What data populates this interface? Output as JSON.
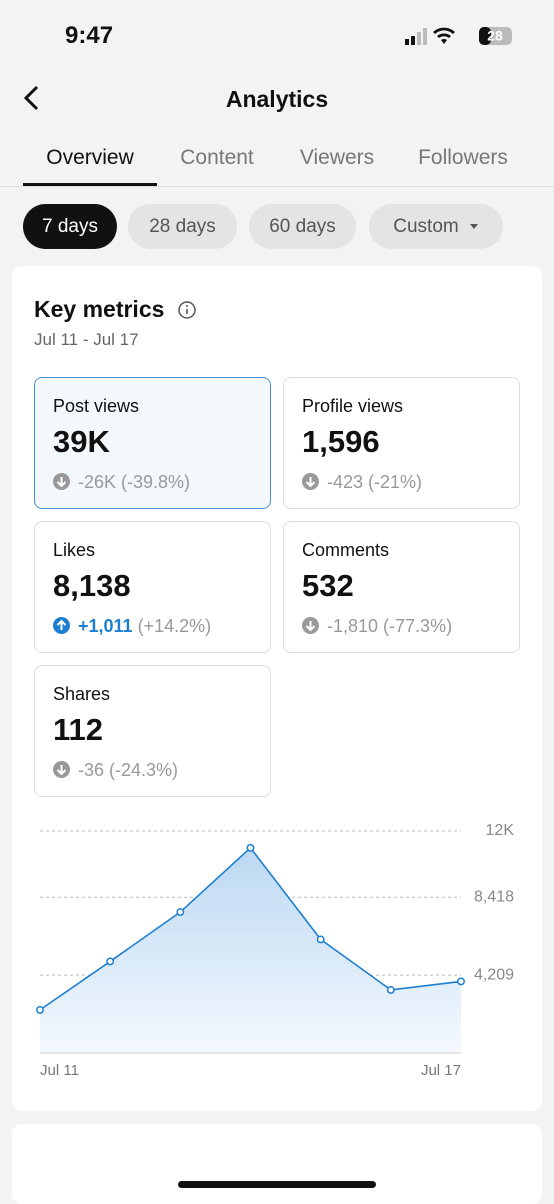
{
  "status_bar": {
    "time": "9:47",
    "battery": "28"
  },
  "header": {
    "title": "Analytics"
  },
  "tabs": {
    "items": [
      "Overview",
      "Content",
      "Viewers",
      "Followers"
    ],
    "active": 0
  },
  "ranges": {
    "items": [
      "7 days",
      "28 days",
      "60 days",
      "Custom"
    ],
    "active": 0
  },
  "key_metrics": {
    "title": "Key metrics",
    "date_range": "Jul 11 - Jul 17",
    "cards": [
      {
        "label": "Post views",
        "value": "39K",
        "change": "-26K",
        "change_pct": "(-39.8%)",
        "trend": "down",
        "selected": true
      },
      {
        "label": "Profile views",
        "value": "1,596",
        "change": "-423",
        "change_pct": "(-21%)",
        "trend": "down",
        "selected": false
      },
      {
        "label": "Likes",
        "value": "8,138",
        "change": "+1,011",
        "change_pct": "(+14.2%)",
        "trend": "up",
        "selected": false
      },
      {
        "label": "Comments",
        "value": "532",
        "change": "-1,810",
        "change_pct": "(-77.3%)",
        "trend": "down",
        "selected": false
      },
      {
        "label": "Shares",
        "value": "112",
        "change": "-36",
        "change_pct": "(-24.3%)",
        "trend": "down",
        "selected": false
      }
    ]
  },
  "chart_data": {
    "type": "area",
    "x": [
      "Jul 11",
      null,
      null,
      null,
      null,
      null,
      "Jul 17"
    ],
    "series": [
      {
        "name": "Post views",
        "color": "#1d7fcf",
        "values": [
          2330,
          4950,
          7620,
          11090,
          6140,
          3410,
          3870
        ]
      }
    ],
    "ylim": [
      0,
      12000
    ],
    "yticks": [
      {
        "value": 4209,
        "label": "4,209"
      },
      {
        "value": 8418,
        "label": "8,418"
      },
      {
        "value": 12000,
        "label": "12K"
      }
    ],
    "grid": true
  }
}
